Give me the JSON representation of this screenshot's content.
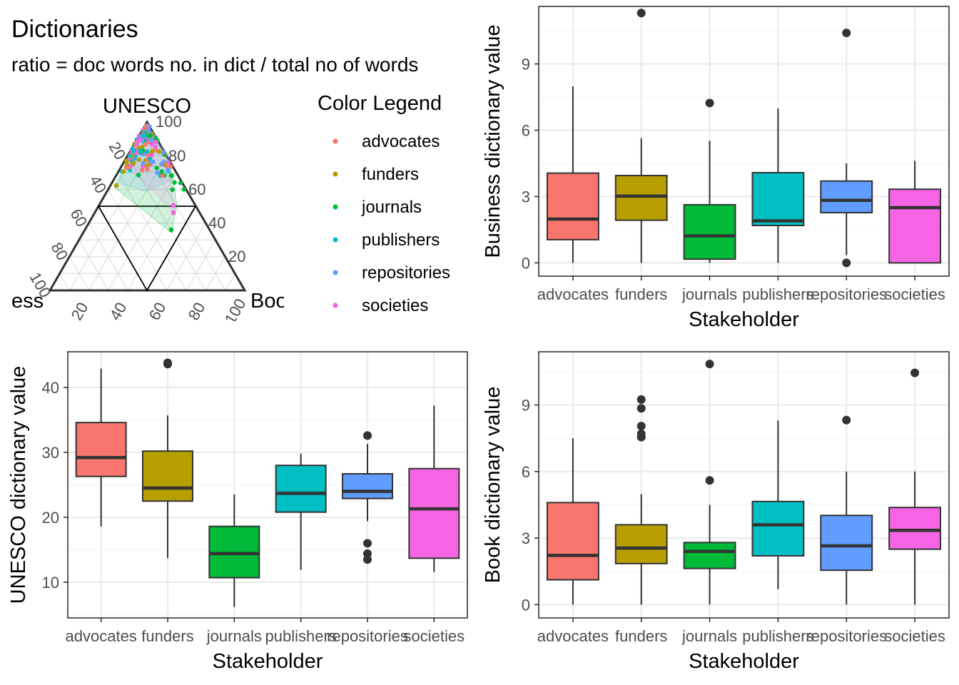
{
  "colors": {
    "advocates": "#F8766D",
    "funders": "#B79F00",
    "journals": "#00BA38",
    "publishers": "#00BFC4",
    "repositories": "#619CFF",
    "societies": "#F564E3",
    "grid_major": "#EBEBEB",
    "grid_minor": "#F5F5F5",
    "ink": "#333333",
    "panel_border": "#333333"
  },
  "ternary": {
    "title": "Dictionaries",
    "subtitle": "ratio = doc words no. in dict / total no of words",
    "top_label": "UNESCO",
    "left_label": "ess",
    "right_label": "Boo",
    "left_ticks": [
      "20",
      "40",
      "60",
      "80",
      "100"
    ],
    "right_ticks": [
      "100",
      "80",
      "60",
      "40",
      "20"
    ],
    "bottom_ticks": [
      "20",
      "40",
      "60",
      "80",
      "100"
    ],
    "legend_title": "Color Legend",
    "legend_items": [
      "advocates",
      "funders",
      "journals",
      "publishers",
      "repositories",
      "societies"
    ]
  },
  "chart_data": [
    {
      "type": "box",
      "id": "business",
      "xlabel": "Stakeholder",
      "ylabel": "Business dictionary value",
      "categories": [
        "advocates",
        "funders",
        "journals",
        "publishers",
        "repositories",
        "societies"
      ],
      "ylim": [
        -0.6,
        11.6
      ],
      "yticks": [
        0,
        3,
        6,
        9
      ],
      "boxes": [
        {
          "q1": 1.05,
          "median": 1.98,
          "q3": 4.06,
          "lower": 0,
          "upper": 7.98,
          "outliers": []
        },
        {
          "q1": 1.93,
          "median": 3.02,
          "q3": 3.95,
          "lower": 0,
          "upper": 5.64,
          "outliers": [
            11.3
          ]
        },
        {
          "q1": 0.17,
          "median": 1.22,
          "q3": 2.63,
          "lower": 0,
          "upper": 5.52,
          "outliers": [
            7.23
          ]
        },
        {
          "q1": 1.69,
          "median": 1.9,
          "q3": 4.08,
          "lower": 0,
          "upper": 6.99,
          "outliers": []
        },
        {
          "q1": 2.27,
          "median": 2.83,
          "q3": 3.7,
          "lower": 0.35,
          "upper": 4.5,
          "outliers": [
            10.4,
            0
          ]
        },
        {
          "q1": 0,
          "median": 2.5,
          "q3": 3.33,
          "lower": 0,
          "upper": 4.62,
          "outliers": []
        }
      ]
    },
    {
      "type": "box",
      "id": "unesco",
      "xlabel": "Stakeholder",
      "ylabel": "UNESCO dictionary value",
      "categories": [
        "advocates",
        "funders",
        "journals",
        "publishers",
        "repositories",
        "societies"
      ],
      "ylim": [
        4.5,
        45.5
      ],
      "yticks": [
        10,
        20,
        30,
        40
      ],
      "boxes": [
        {
          "q1": 26.3,
          "median": 29.2,
          "q3": 34.6,
          "lower": 18.6,
          "upper": 42.9,
          "outliers": []
        },
        {
          "q1": 22.5,
          "median": 24.5,
          "q3": 30.2,
          "lower": 13.7,
          "upper": 35.7,
          "outliers": [
            43.8,
            43.6
          ]
        },
        {
          "q1": 10.7,
          "median": 14.4,
          "q3": 18.6,
          "lower": 6.2,
          "upper": 23.5,
          "outliers": []
        },
        {
          "q1": 20.8,
          "median": 23.7,
          "q3": 28.0,
          "lower": 11.9,
          "upper": 29.8,
          "outliers": []
        },
        {
          "q1": 22.9,
          "median": 24.0,
          "q3": 26.7,
          "lower": 19.4,
          "upper": 31.3,
          "outliers": [
            32.6,
            16.0,
            14.4,
            13.5
          ]
        },
        {
          "q1": 13.7,
          "median": 21.3,
          "q3": 27.5,
          "lower": 11.6,
          "upper": 37.2,
          "outliers": []
        }
      ]
    },
    {
      "type": "box",
      "id": "book",
      "xlabel": "Stakeholder",
      "ylabel": "Book dictionary value",
      "categories": [
        "advocates",
        "funders",
        "journals",
        "publishers",
        "repositories",
        "societies"
      ],
      "ylim": [
        -0.6,
        11.4
      ],
      "yticks": [
        0,
        3,
        6,
        9
      ],
      "boxes": [
        {
          "q1": 1.12,
          "median": 2.22,
          "q3": 4.6,
          "lower": 0,
          "upper": 7.5,
          "outliers": []
        },
        {
          "q1": 1.85,
          "median": 2.55,
          "q3": 3.6,
          "lower": 0,
          "upper": 4.98,
          "outliers": [
            9.25,
            8.85,
            8.05,
            7.7,
            7.55
          ]
        },
        {
          "q1": 1.63,
          "median": 2.4,
          "q3": 2.8,
          "lower": 0,
          "upper": 4.5,
          "outliers": [
            10.85,
            5.6
          ]
        },
        {
          "q1": 2.2,
          "median": 3.6,
          "q3": 4.65,
          "lower": 0.7,
          "upper": 8.3,
          "outliers": []
        },
        {
          "q1": 1.55,
          "median": 2.65,
          "q3": 4.02,
          "lower": 0,
          "upper": 6.0,
          "outliers": [
            8.32
          ]
        },
        {
          "q1": 2.5,
          "median": 3.35,
          "q3": 4.38,
          "lower": 0,
          "upper": 6.0,
          "outliers": [
            10.45
          ]
        }
      ]
    }
  ]
}
